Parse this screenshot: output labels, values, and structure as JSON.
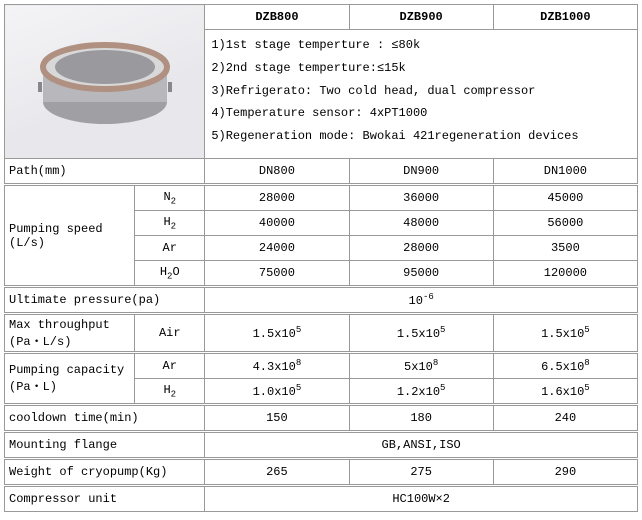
{
  "models": [
    "DZB800",
    "DZB900",
    "DZB1000"
  ],
  "specs": [
    "1)1st stage temperture : ≤80k",
    "2)2nd stage temperture:≤15k",
    "3)Refrigerato: Two cold head, dual compressor",
    "4)Temperature sensor: 4xPT1000",
    "5)Regeneration mode: Bwokai 421regeneration devices"
  ],
  "path": {
    "label": "Path(mm)",
    "vals": [
      "DN800",
      "DN900",
      "DN1000"
    ]
  },
  "pump_speed": {
    "label": "Pumping speed (L/s)",
    "rows": [
      {
        "gas": "N",
        "sub": "2",
        "vals": [
          "28000",
          "36000",
          "45000"
        ]
      },
      {
        "gas": "H",
        "sub": "2",
        "vals": [
          "40000",
          "48000",
          "56000"
        ]
      },
      {
        "gas": "Ar",
        "sub": "",
        "vals": [
          "24000",
          "28000",
          "3500"
        ]
      },
      {
        "gas": "H",
        "sub": "2",
        "tail": "O",
        "vals": [
          "75000",
          "95000",
          "120000"
        ]
      }
    ]
  },
  "ultimate": {
    "label": "Ultimate pressure(pa)",
    "val_html": "10<sup>-6</sup>"
  },
  "max_thr": {
    "label": "Max throughput (Pa・L/s)",
    "gas": "Air",
    "vals_html": [
      "1.5x10<sup>5</sup>",
      "1.5x10<sup>5</sup>",
      "1.5x10<sup>5</sup>"
    ]
  },
  "pump_cap": {
    "label": "Pumping capacity (Pa・L)",
    "rows": [
      {
        "gas": "Ar",
        "sub": "",
        "vals_html": [
          "4.3x10<sup>8</sup>",
          "5x10<sup>8</sup>",
          "6.5x10<sup>8</sup>"
        ]
      },
      {
        "gas": "H",
        "sub": "2",
        "vals_html": [
          "1.0x10<sup>5</sup>",
          "1.2x10<sup>5</sup>",
          "1.6x10<sup>5</sup>"
        ]
      }
    ]
  },
  "cooldown": {
    "label": "cooldown time(min)",
    "vals": [
      "150",
      "180",
      "240"
    ]
  },
  "flange": {
    "label": "Mounting flange",
    "val": "GB,ANSI,ISO"
  },
  "weight": {
    "label": "Weight of cryopump(Kg)",
    "vals": [
      "265",
      "275",
      "290"
    ]
  },
  "compressor": {
    "label": "Compressor unit",
    "val": "HC100W×2"
  },
  "colors": {
    "border": "#999",
    "flange": "#b09080",
    "body": "#b8b8bc",
    "lip": "#d8d8d8"
  }
}
